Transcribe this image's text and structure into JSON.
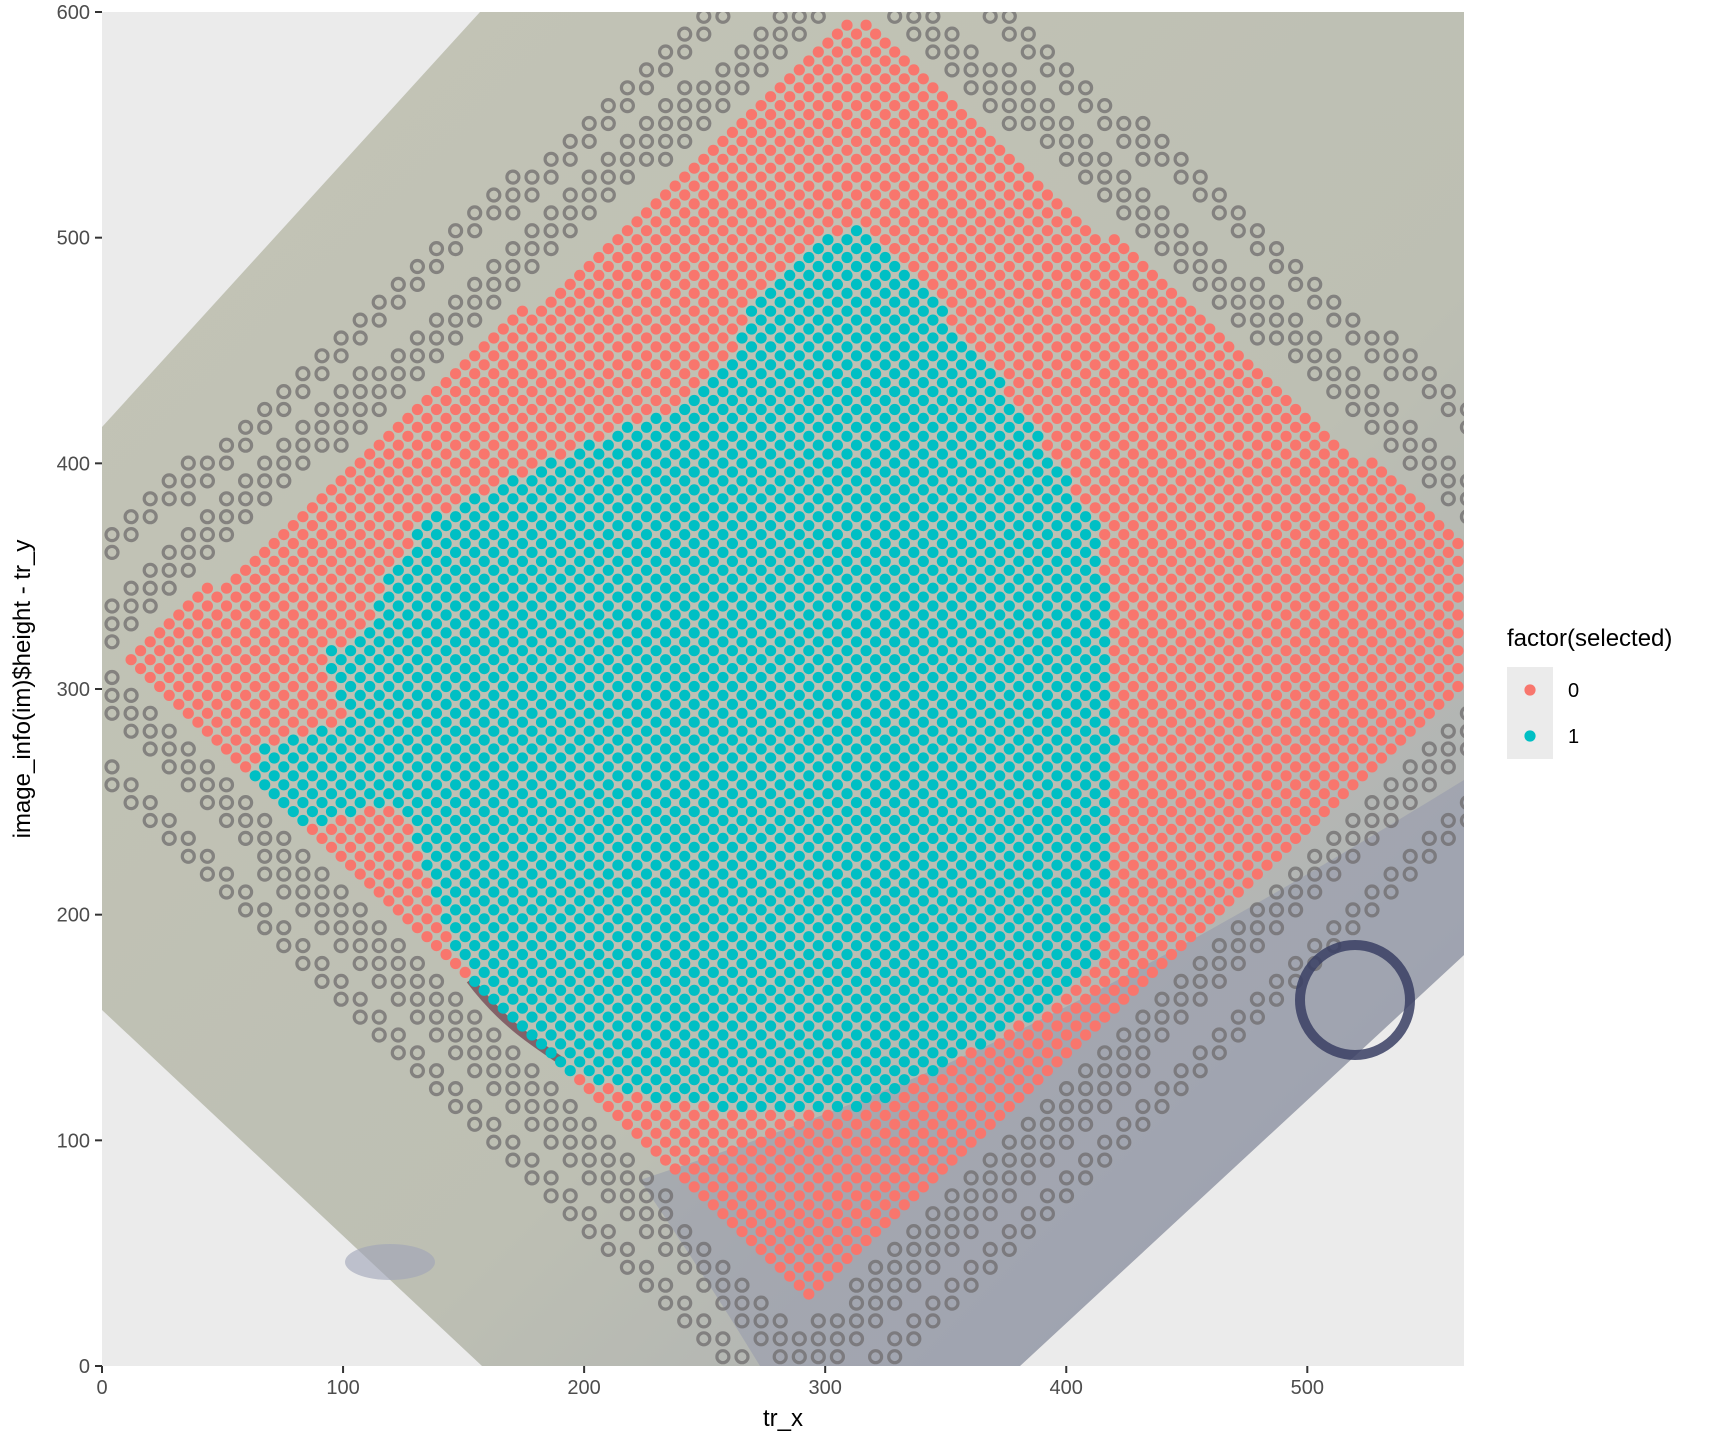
{
  "chart_data": {
    "type": "scatter",
    "title": "",
    "xlabel": "tr_x",
    "ylabel": "image_info(im)$height - tr_y",
    "xlim": [
      0,
      565
    ],
    "ylim": [
      0,
      600
    ],
    "x_ticks": [
      0,
      100,
      200,
      300,
      400,
      500
    ],
    "y_ticks": [
      0,
      100,
      200,
      300,
      400,
      500,
      600
    ],
    "grid": false,
    "background_image": "tissue-histology-slide",
    "legend": {
      "title": "factor(selected)",
      "position": "right",
      "entries": [
        {
          "label": "0",
          "color": "#F8766D"
        },
        {
          "label": "1",
          "color": "#00BFC4"
        }
      ]
    },
    "spot_grid": {
      "spacing": 5.6,
      "rotation_deg": 45
    },
    "series": [
      {
        "name": "0",
        "color": "#F8766D",
        "region": [
          [
            10,
            313
          ],
          [
            313,
            598
          ],
          [
            565,
            365
          ],
          [
            565,
            303
          ],
          [
            293,
            27
          ]
        ]
      },
      {
        "name": "1",
        "color": "#00BFC4",
        "region": [
          [
            62,
            252
          ],
          [
            65,
            275
          ],
          [
            92,
            282
          ],
          [
            100,
            288
          ],
          [
            92,
            315
          ],
          [
            113,
            330
          ],
          [
            118,
            348
          ],
          [
            133,
            375
          ],
          [
            162,
            390
          ],
          [
            200,
            408
          ],
          [
            238,
            425
          ],
          [
            262,
            450
          ],
          [
            272,
            478
          ],
          [
            300,
            502
          ],
          [
            318,
            505
          ],
          [
            340,
            478
          ],
          [
            365,
            448
          ],
          [
            385,
            418
          ],
          [
            415,
            368
          ],
          [
            420,
            280
          ],
          [
            418,
            200
          ],
          [
            412,
            180
          ],
          [
            398,
            162
          ],
          [
            362,
            140
          ],
          [
            318,
            115
          ],
          [
            268,
            113
          ],
          [
            228,
            118
          ],
          [
            195,
            128
          ],
          [
            168,
            148
          ],
          [
            148,
            180
          ],
          [
            135,
            218
          ],
          [
            126,
            248
          ],
          [
            110,
            250
          ],
          [
            98,
            242
          ],
          [
            80,
            238
          ]
        ]
      }
    ]
  }
}
